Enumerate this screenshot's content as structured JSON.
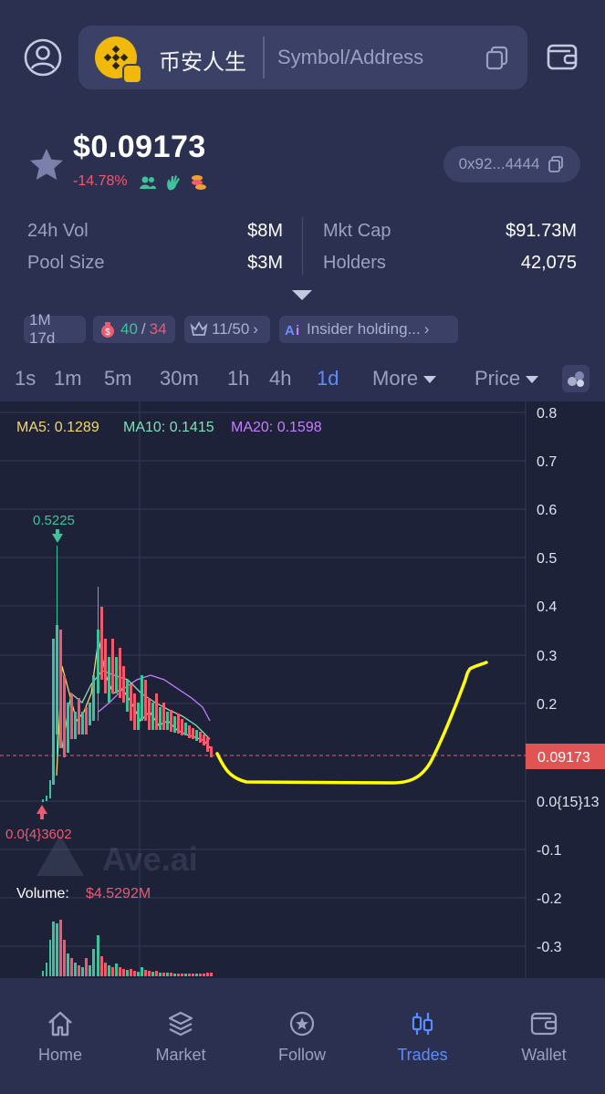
{
  "search": {
    "token_name": "币安人生",
    "placeholder": "Symbol/Address"
  },
  "token": {
    "price": "$0.09173",
    "change": "-14.78%",
    "address_short": "0x92...4444"
  },
  "stats": {
    "vol_label": "24h Vol",
    "vol_value": "$8M",
    "pool_label": "Pool Size",
    "pool_value": "$3M",
    "mcap_label": "Mkt Cap",
    "mcap_value": "$91.73M",
    "holders_label": "Holders",
    "holders_value": "42,075"
  },
  "tags": {
    "age": "1M 17d",
    "buys": "40",
    "sep": "/",
    "sells": "34",
    "top": "11/50",
    "insider": "Insider holding..."
  },
  "timeframes": [
    "1s",
    "1m",
    "5m",
    "30m",
    "1h",
    "4h",
    "1d"
  ],
  "active_timeframe": "1d",
  "toolbar": {
    "more_label": "More",
    "price_label": "Price"
  },
  "chart_data": {
    "type": "candlestick",
    "ma_labels": {
      "ma5": "MA5: 0.1289",
      "ma10": "MA10: 0.1415",
      "ma20": "MA20: 0.1598"
    },
    "y_ticks": [
      "0.8",
      "0.7",
      "0.6",
      "0.5",
      "0.4",
      "0.3",
      "0.2",
      "0.0{15}13",
      "-0.1",
      "-0.2",
      "-0.3"
    ],
    "high_label": "0.5225",
    "low_label": "0.0{4}3602",
    "current_price_label": "0.09173",
    "volume_label": "Volume:",
    "volume_value": "$4.5292M",
    "watermark": "Ave.ai",
    "colors": {
      "up": "#3dc39a",
      "down": "#ef5a6f",
      "ma5": "#f5d76e",
      "ma10": "#7fe0b8",
      "ma20": "#c77dff",
      "drawing": "#ffff00"
    }
  },
  "nav": {
    "home": "Home",
    "market": "Market",
    "follow": "Follow",
    "trades": "Trades",
    "wallet": "Wallet",
    "active": "Trades"
  }
}
